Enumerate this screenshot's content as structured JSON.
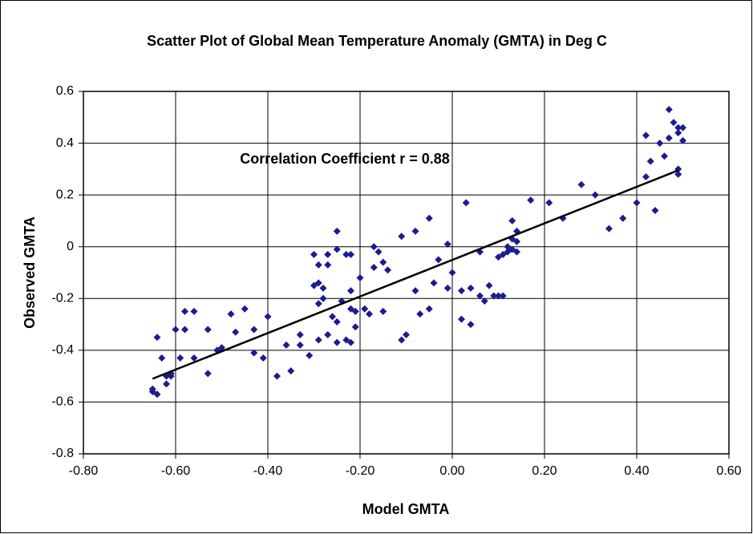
{
  "chart_data": {
    "type": "scatter",
    "title": "Scatter Plot of Global Mean Temperature Anomaly (GMTA) in Deg C",
    "x_label": "Model GMTA",
    "y_label": "Observed GMTA",
    "annotation": "Correlation Coefficient r = 0.88",
    "color": "#1c1c8e",
    "grid": true,
    "xlim": [
      -0.8,
      0.6
    ],
    "xticks": [
      {
        "value": -0.8,
        "label": "-0.80"
      },
      {
        "value": -0.6,
        "label": "-0.60"
      },
      {
        "value": -0.4,
        "label": "-0.40"
      },
      {
        "value": -0.2,
        "label": "-0.20"
      },
      {
        "value": 0,
        "label": "0.00"
      },
      {
        "value": 0.2,
        "label": "0.20"
      },
      {
        "value": 0.4,
        "label": "0.40"
      },
      {
        "value": 0.6,
        "label": "0.60"
      }
    ],
    "ylim": [
      -0.8,
      0.6
    ],
    "yticks": [
      0.6,
      0.4,
      0.2,
      0,
      -0.2,
      -0.4,
      -0.6,
      -0.8
    ],
    "trendline": {
      "color": "#000000",
      "x": [
        -0.65,
        0.49
      ],
      "y": [
        -0.51,
        0.295
      ]
    },
    "x": [
      -0.65,
      -0.65,
      -0.64,
      -0.64,
      -0.63,
      -0.62,
      -0.62,
      -0.61,
      -0.61,
      -0.6,
      -0.59,
      -0.58,
      -0.58,
      -0.56,
      -0.56,
      -0.53,
      -0.53,
      -0.51,
      -0.5,
      -0.48,
      -0.47,
      -0.45,
      -0.43,
      -0.43,
      -0.41,
      -0.4,
      -0.38,
      -0.36,
      -0.35,
      -0.33,
      -0.33,
      -0.31,
      -0.3,
      -0.3,
      -0.29,
      -0.29,
      -0.29,
      -0.29,
      -0.28,
      -0.28,
      -0.27,
      -0.27,
      -0.27,
      -0.26,
      -0.25,
      -0.25,
      -0.25,
      -0.25,
      -0.24,
      -0.23,
      -0.23,
      -0.22,
      -0.22,
      -0.22,
      -0.22,
      -0.21,
      -0.21,
      -0.2,
      -0.19,
      -0.18,
      -0.17,
      -0.17,
      -0.16,
      -0.15,
      -0.15,
      -0.14,
      -0.11,
      -0.11,
      -0.1,
      -0.08,
      -0.08,
      -0.07,
      -0.05,
      -0.05,
      -0.04,
      -0.03,
      -0.01,
      -0.01,
      0.0,
      0.02,
      0.02,
      0.03,
      0.04,
      0.04,
      0.06,
      0.06,
      0.07,
      0.08,
      0.09,
      0.1,
      0.11,
      0.1,
      0.11,
      0.12,
      0.12,
      0.13,
      0.13,
      0.13,
      0.14,
      0.14,
      0.14,
      0.17,
      0.21,
      0.24,
      0.28,
      0.31,
      0.34,
      0.37,
      0.4,
      0.42,
      0.42,
      0.43,
      0.44,
      0.45,
      0.46,
      0.47,
      0.47,
      0.48,
      0.49,
      0.49,
      0.49,
      0.49,
      0.5,
      0.5
    ],
    "y": [
      -0.55,
      -0.56,
      -0.57,
      -0.35,
      -0.43,
      -0.5,
      -0.53,
      -0.49,
      -0.5,
      -0.32,
      -0.43,
      -0.25,
      -0.32,
      -0.25,
      -0.43,
      -0.32,
      -0.49,
      -0.4,
      -0.39,
      -0.26,
      -0.33,
      -0.24,
      -0.32,
      -0.41,
      -0.43,
      -0.27,
      -0.5,
      -0.38,
      -0.48,
      -0.38,
      -0.34,
      -0.42,
      -0.03,
      -0.15,
      -0.14,
      -0.07,
      -0.22,
      -0.36,
      -0.16,
      -0.2,
      -0.03,
      -0.07,
      -0.34,
      -0.27,
      0.06,
      -0.01,
      -0.29,
      -0.37,
      -0.21,
      -0.03,
      -0.36,
      -0.37,
      -0.17,
      -0.24,
      -0.03,
      -0.31,
      -0.25,
      -0.12,
      -0.24,
      -0.26,
      -0.08,
      0.0,
      -0.02,
      -0.06,
      -0.25,
      -0.09,
      0.04,
      -0.36,
      -0.34,
      0.06,
      -0.17,
      -0.26,
      0.11,
      -0.24,
      -0.14,
      -0.05,
      0.01,
      -0.16,
      -0.1,
      -0.28,
      -0.17,
      0.17,
      -0.3,
      -0.16,
      -0.02,
      -0.19,
      -0.21,
      -0.15,
      -0.19,
      -0.04,
      -0.03,
      -0.19,
      -0.19,
      0.0,
      -0.02,
      -0.01,
      0.1,
      0.03,
      0.06,
      -0.02,
      0.02,
      0.18,
      0.17,
      0.11,
      0.24,
      0.2,
      0.07,
      0.11,
      0.17,
      0.43,
      0.27,
      0.33,
      0.14,
      0.4,
      0.35,
      0.42,
      0.53,
      0.48,
      0.3,
      0.44,
      0.28,
      0.46,
      0.41,
      0.46
    ]
  }
}
